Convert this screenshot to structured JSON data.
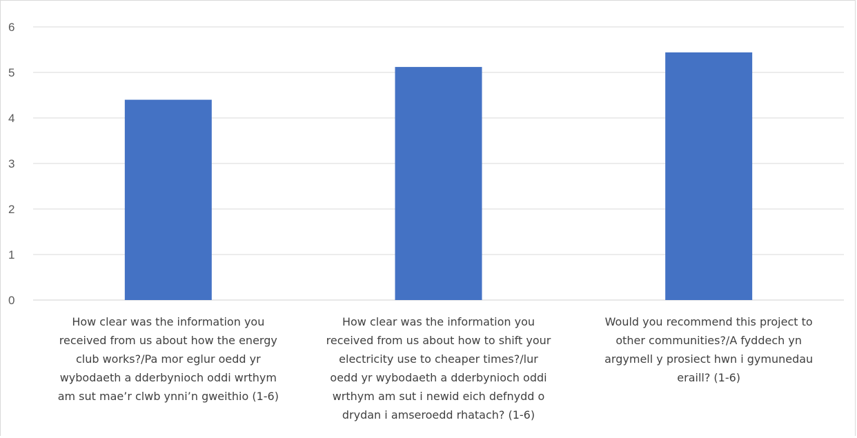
{
  "chart_data": {
    "type": "bar",
    "categories": [
      "How clear was the information you received from us about how the energy club works?/Pa mor eglur oedd yr wybodaeth a dderbynioch oddi wrthym am sut mae’r clwb ynni’n gweithio (1-6)",
      "How clear was the information you received from us about how to shift your electricity use to cheaper times?/lur oedd yr wybodaeth a dderbynioch oddi wrthym am sut i newid eich defnydd o drydan i amseroedd rhatach? (1-6)",
      "Would you recommend this project to other communities?/A fyddech yn argymell y prosiect hwn i gymunedau eraill? (1-6)"
    ],
    "category_lines": [
      [
        "How clear was the information you",
        "received from us about how the energy",
        "club works?/Pa mor eglur oedd yr",
        "wybodaeth a dderbynioch oddi wrthym",
        "am sut mae’r clwb ynni’n gweithio (1-6)"
      ],
      [
        "How clear was the information you",
        "received from us about how to shift your",
        "electricity use to cheaper times?/lur",
        "oedd yr wybodaeth a dderbynioch oddi",
        "wrthym am sut i newid eich defnydd o",
        "drydan i amseroedd rhatach? (1-6)"
      ],
      [
        "Would you recommend this project to",
        "other communities?/A fyddech yn",
        "argymell y prosiect hwn i gymunedau",
        "eraill? (1-6)"
      ]
    ],
    "values": [
      4.4,
      5.12,
      5.44
    ],
    "ylim": [
      0,
      6
    ],
    "yticks": [
      "0",
      "1",
      "2",
      "3",
      "4",
      "5",
      "6"
    ],
    "grid": true,
    "bar_color": "#4472C4",
    "title": "",
    "xlabel": "",
    "ylabel": ""
  }
}
